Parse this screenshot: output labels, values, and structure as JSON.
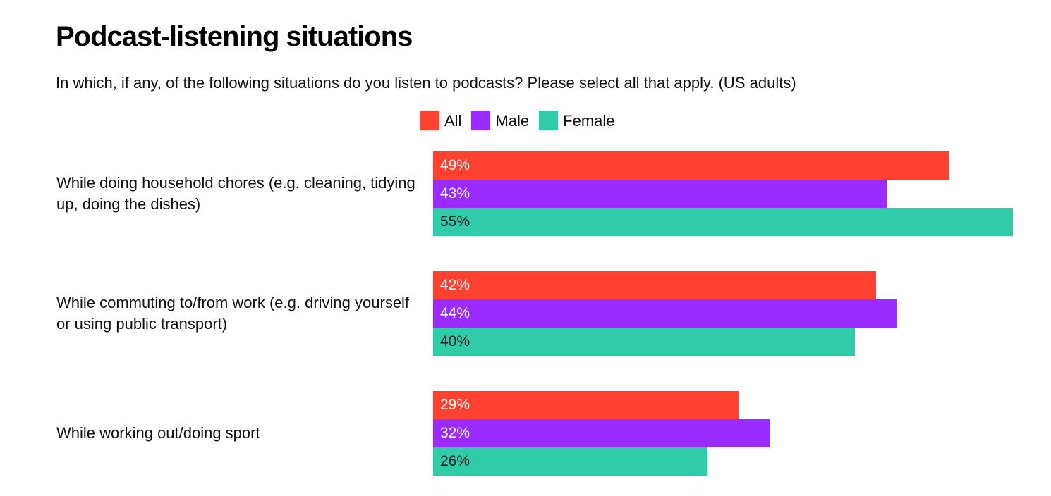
{
  "chart_data": {
    "type": "bar",
    "orientation": "horizontal",
    "title": "Podcast-listening situations",
    "subtitle": "In which, if any, of the following situations do you listen to podcasts? Please select all that apply. (US adults)",
    "legend_position": "top",
    "grid": false,
    "xlim": [
      0,
      55
    ],
    "value_suffix": "%",
    "categories": [
      "While doing household chores (e.g. cleaning, tidying up, doing the dishes)",
      "While commuting to/from work (e.g. driving yourself or using public transport)",
      "While working out/doing sport"
    ],
    "series": [
      {
        "name": "All",
        "color": "#ff4130",
        "label_color": "#ffffff",
        "values": [
          49,
          42,
          29
        ]
      },
      {
        "name": "Male",
        "color": "#9b2cff",
        "label_color": "#ffffff",
        "values": [
          43,
          44,
          32
        ]
      },
      {
        "name": "Female",
        "color": "#30cba9",
        "label_color": "#1a1a1a",
        "values": [
          55,
          40,
          26
        ]
      }
    ]
  }
}
